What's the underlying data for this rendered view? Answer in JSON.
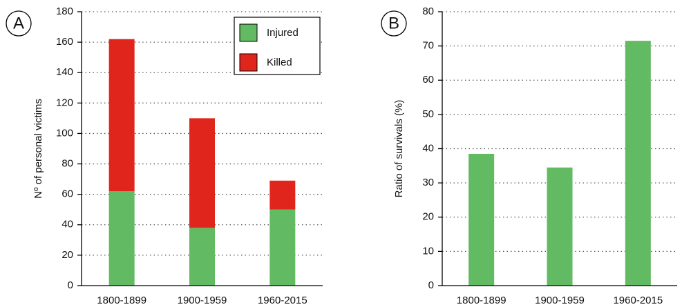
{
  "chart_data": [
    {
      "type": "bar",
      "stacked": true,
      "label": "A",
      "ylabel": "Nº of personal victims",
      "categories": [
        "1800-1899",
        "1900-1959",
        "1960-2015"
      ],
      "series": [
        {
          "name": "Injured",
          "color": "#62ba62",
          "values": [
            62,
            38,
            50
          ]
        },
        {
          "name": "Killed",
          "color": "#e0261c",
          "values": [
            100,
            72,
            19
          ]
        }
      ],
      "ylim": [
        0,
        180
      ],
      "yticks": [
        0,
        20,
        40,
        60,
        80,
        100,
        120,
        140,
        160,
        180
      ],
      "grid": true,
      "legend": "upper right"
    },
    {
      "type": "bar",
      "label": "B",
      "ylabel": "Ratio of survivals (%)",
      "categories": [
        "1800-1899",
        "1900-1959",
        "1960-2015"
      ],
      "values": [
        38.5,
        34.5,
        71.5
      ],
      "color": "#62ba62",
      "ylim": [
        0,
        80
      ],
      "yticks": [
        0,
        10,
        20,
        30,
        40,
        50,
        60,
        70,
        80
      ],
      "grid": true
    }
  ]
}
